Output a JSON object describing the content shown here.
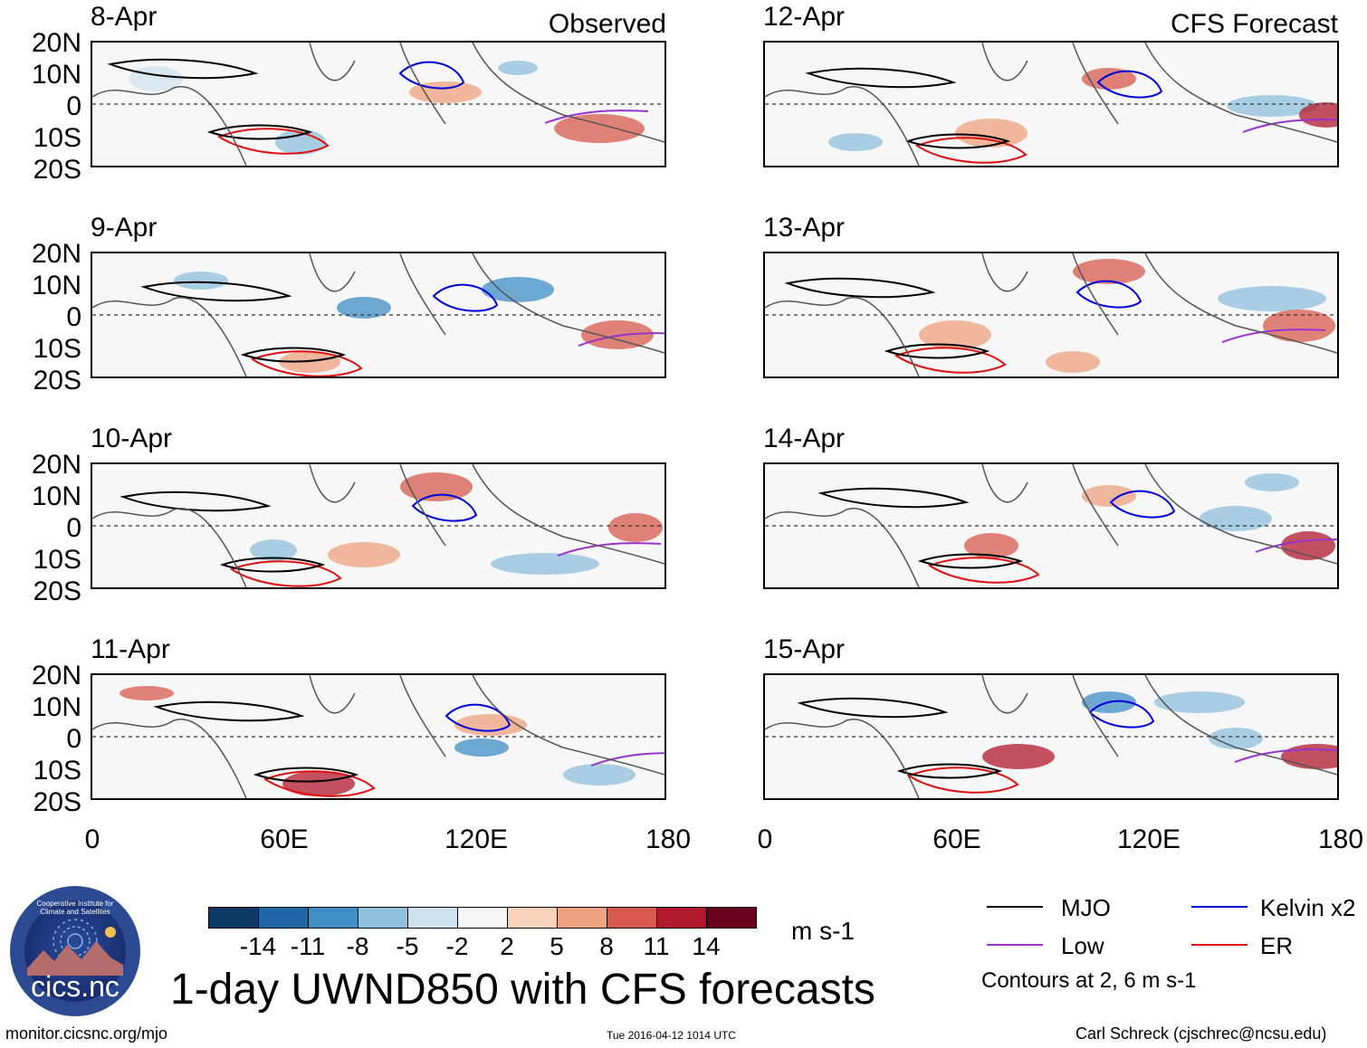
{
  "header": {
    "observed_label": "Observed",
    "forecast_label": "CFS Forecast"
  },
  "panels": [
    {
      "date": "8-Apr"
    },
    {
      "date": "9-Apr"
    },
    {
      "date": "10-Apr"
    },
    {
      "date": "11-Apr"
    },
    {
      "date": "12-Apr"
    },
    {
      "date": "13-Apr"
    },
    {
      "date": "14-Apr"
    },
    {
      "date": "15-Apr"
    }
  ],
  "axes": {
    "lat_labels": [
      "20N",
      "10N",
      "0",
      "10S",
      "20S"
    ],
    "lon_labels": [
      "0",
      "60E",
      "120E",
      "180"
    ],
    "lat_range": [
      -20,
      20
    ],
    "lon_range": [
      0,
      180
    ]
  },
  "colorbar": {
    "ticks": [
      "-14",
      "-11",
      "-8",
      "-5",
      "-2",
      "2",
      "5",
      "8",
      "11",
      "14"
    ],
    "colors": [
      "#0d3a66",
      "#1f66a8",
      "#3f8ec6",
      "#8fc0dd",
      "#cfe3ef",
      "#f7f7f7",
      "#f9d2bc",
      "#eea27f",
      "#d7594c",
      "#b2182b",
      "#67001f"
    ],
    "units": "m s-1"
  },
  "legend": {
    "items": [
      {
        "label": "MJO",
        "color": "#000000"
      },
      {
        "label": "Kelvin x2",
        "color": "#0000dd"
      },
      {
        "label": "Low",
        "color": "#9933cc"
      },
      {
        "label": "ER",
        "color": "#e01010"
      }
    ],
    "note": "Contours at 2, 6 m s-1"
  },
  "logo": {
    "text": "cics.nc",
    "ring_text": "Cooperative Institute for Climate and Satellites"
  },
  "main_title": "1-day UWND850 with CFS forecasts",
  "footer": {
    "url": "monitor.cicsnc.org/mjo",
    "timestamp": "Tue 2016-04-12 1014 UTC",
    "credit": "Carl Schreck (cjschrec@ncsu.edu)"
  }
}
